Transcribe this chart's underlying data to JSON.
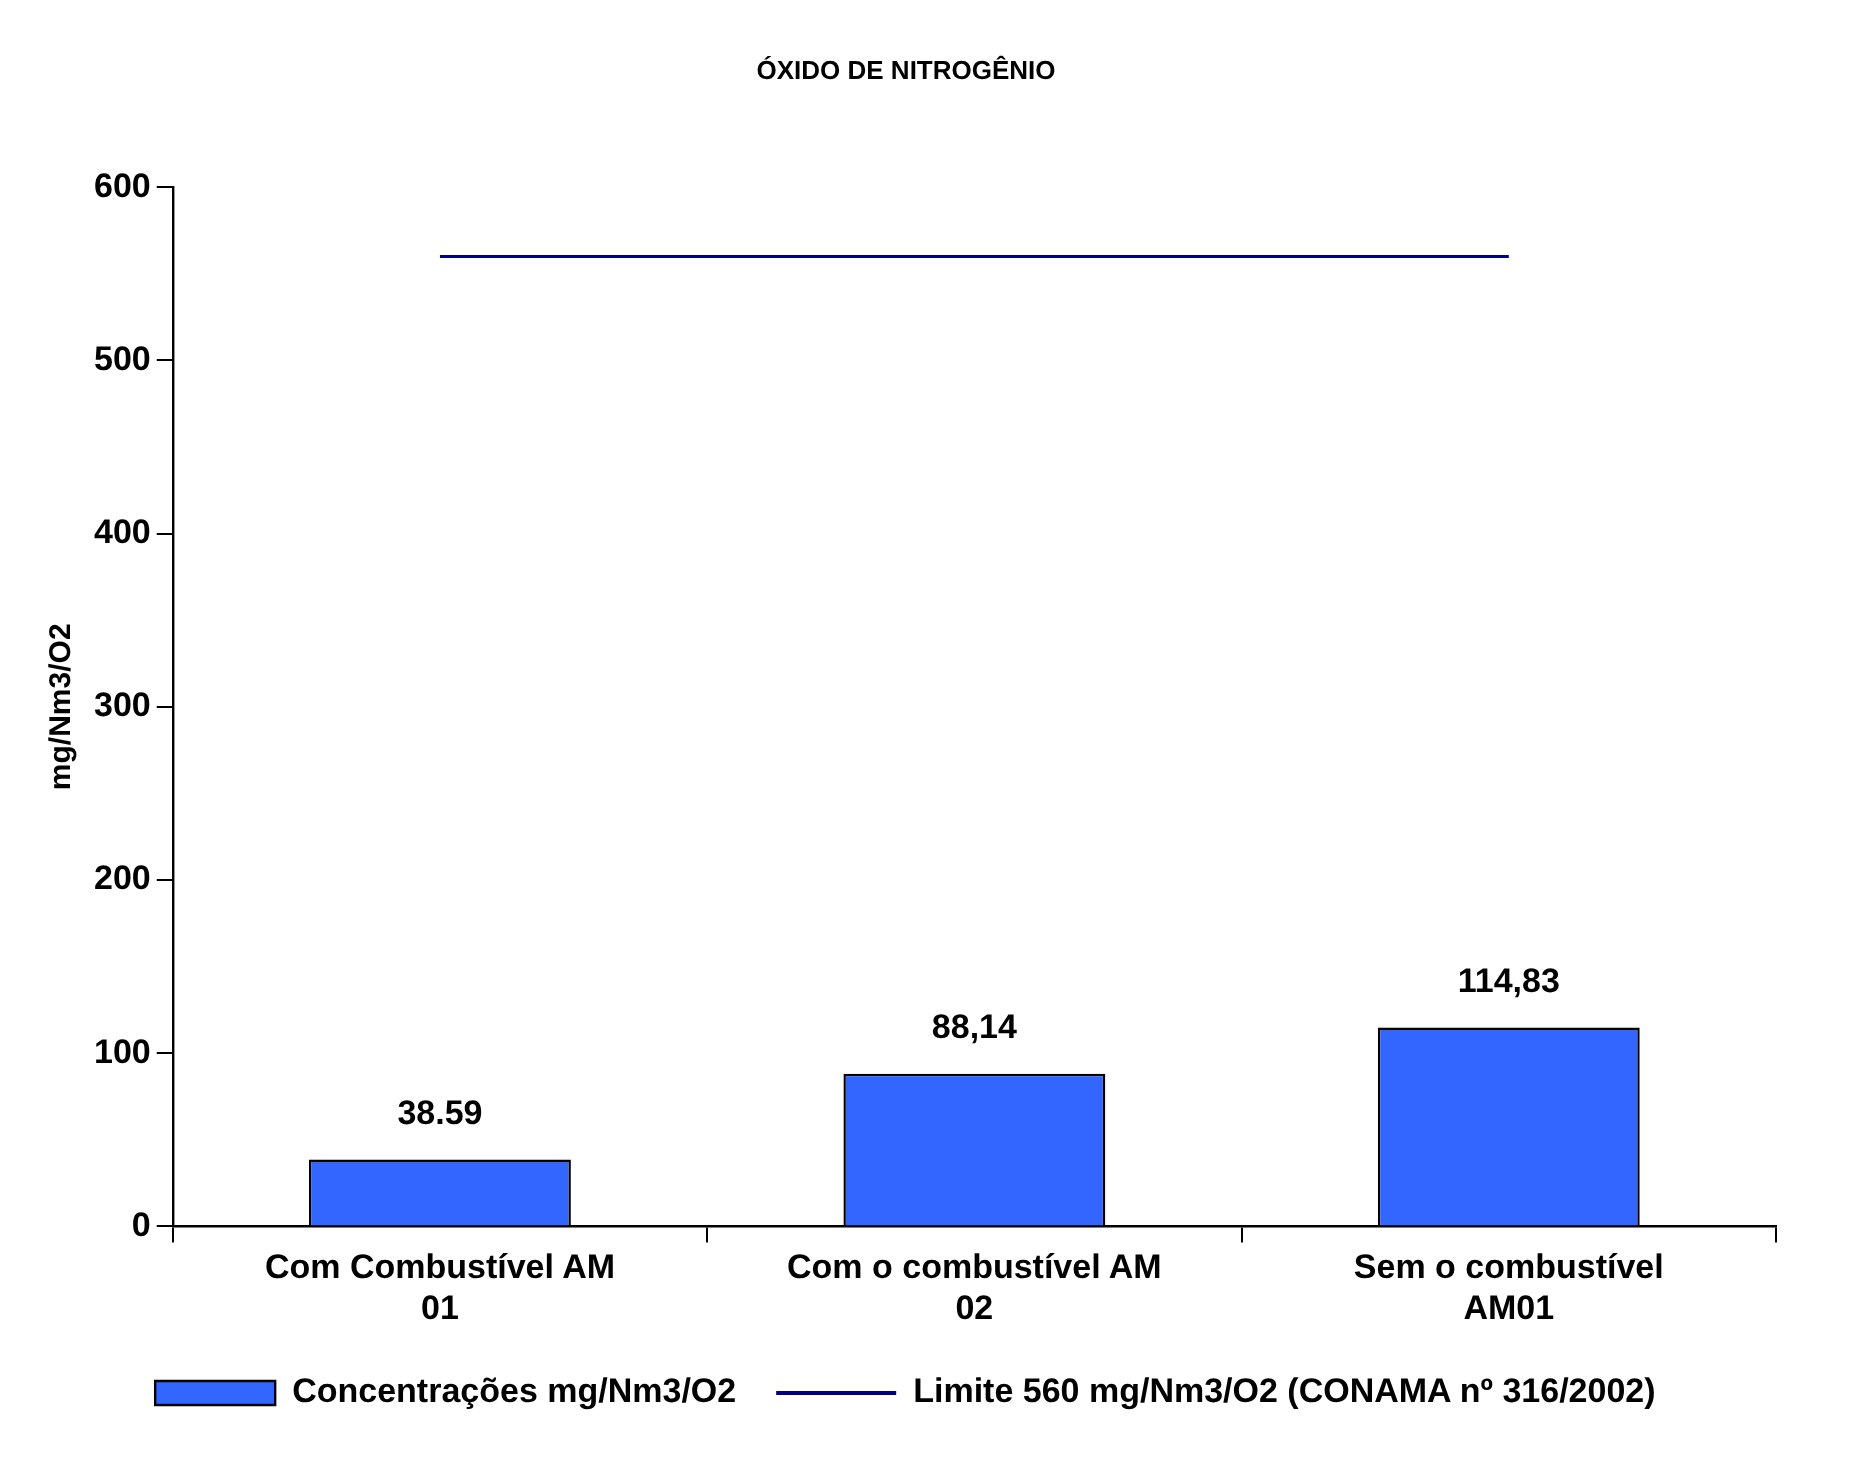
{
  "chart_data": {
    "type": "bar",
    "title": "ÓXIDO DE NITROGÊNIO",
    "ylabel": "mg/Nm3/O2",
    "categories": [
      "Com Combustível AM 01",
      "Com o combustível AM 02",
      "Sem o combustível AM01"
    ],
    "series": [
      {
        "name": "Concentrações mg/Nm3/O2",
        "color": "#3366ff",
        "values": [
          38.59,
          88.14,
          114.83
        ],
        "value_labels": [
          "38.59",
          "88,14",
          "114,83"
        ]
      },
      {
        "name": "Limite 560 mg/Nm3/O2 (CONAMA nº 316/2002)",
        "type": "line",
        "color": "#000080",
        "values": [
          560,
          560,
          560
        ],
        "marker": "none"
      }
    ],
    "ylim": [
      0,
      600
    ],
    "yticks": [
      0,
      100,
      200,
      300,
      400,
      500,
      600
    ],
    "grid": false,
    "legend": "bottom"
  }
}
